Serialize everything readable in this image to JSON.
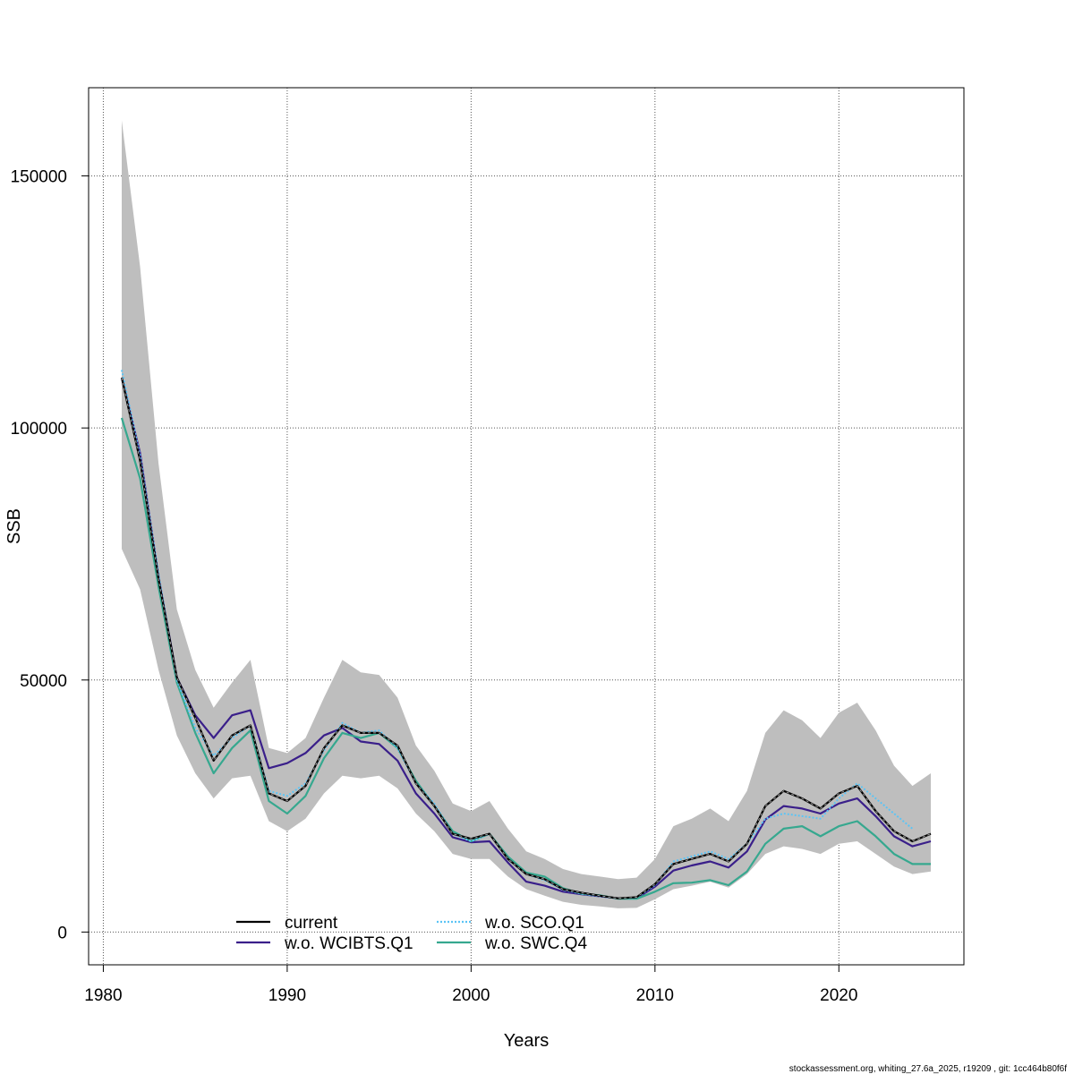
{
  "chart_data": {
    "type": "line",
    "xlabel": "Years",
    "ylabel": "SSB",
    "xlim": [
      1979.2,
      2026.8
    ],
    "ylim": [
      -6500,
      167500
    ],
    "x_ticks": [
      1980,
      1990,
      2000,
      2010,
      2020
    ],
    "y_ticks": [
      0,
      50000,
      100000,
      150000
    ],
    "grid": true,
    "legend_position": "bottom-left",
    "x": [
      1981,
      1982,
      1983,
      1984,
      1985,
      1986,
      1987,
      1988,
      1989,
      1990,
      1991,
      1992,
      1993,
      1994,
      1995,
      1996,
      1997,
      1998,
      1999,
      2000,
      2001,
      2002,
      2003,
      2004,
      2005,
      2006,
      2007,
      2008,
      2009,
      2010,
      2011,
      2012,
      2013,
      2014,
      2015,
      2016,
      2017,
      2018,
      2019,
      2020,
      2021,
      2022,
      2023,
      2024,
      2025
    ],
    "confidence_band": {
      "upper": [
        161000,
        132000,
        93000,
        64000,
        52000,
        44500,
        49500,
        54000,
        36500,
        35500,
        38500,
        46500,
        54000,
        51500,
        51000,
        46500,
        37000,
        32000,
        25500,
        24000,
        26000,
        20500,
        16000,
        14500,
        12500,
        11500,
        11000,
        10500,
        10800,
        14500,
        21000,
        22500,
        24500,
        22000,
        28000,
        39500,
        44000,
        42000,
        38500,
        43500,
        45500,
        40000,
        33000,
        29000,
        31500
      ],
      "lower": [
        76000,
        68000,
        52000,
        39000,
        31500,
        26500,
        30500,
        31000,
        22000,
        20000,
        22500,
        27500,
        31000,
        30500,
        31000,
        28500,
        23500,
        20000,
        15500,
        14500,
        14500,
        11000,
        8500,
        7200,
        6000,
        5400,
        5100,
        4700,
        4800,
        6500,
        8500,
        9200,
        10000,
        8800,
        11500,
        15500,
        17000,
        16500,
        15500,
        17500,
        18000,
        15500,
        13000,
        11500,
        12000
      ]
    },
    "series": [
      {
        "name": "current",
        "color": "#000000",
        "dash": "solid",
        "values": [
          110000,
          93500,
          70000,
          50500,
          42500,
          34000,
          39000,
          41000,
          27500,
          26000,
          29000,
          36500,
          41000,
          39500,
          39500,
          37000,
          29500,
          25000,
          19500,
          18500,
          19500,
          14500,
          11500,
          10500,
          8500,
          7800,
          7200,
          6700,
          6900,
          9500,
          13500,
          14500,
          15500,
          14000,
          17500,
          25000,
          28000,
          26500,
          24500,
          27500,
          29000,
          24000,
          20000,
          18000,
          19500
        ]
      },
      {
        "name": "w.o. WCIBTS.Q1",
        "color": "#3a1f8a",
        "dash": "solid",
        "values": [
          110000,
          95000,
          70500,
          50500,
          43000,
          38500,
          43000,
          44000,
          32500,
          33500,
          35500,
          39000,
          40500,
          37800,
          37300,
          34000,
          27500,
          23500,
          18800,
          17800,
          18000,
          13800,
          10000,
          9200,
          8000,
          7500,
          7100,
          6700,
          6700,
          9000,
          12200,
          13200,
          14000,
          12800,
          16000,
          22300,
          25000,
          24500,
          23500,
          25500,
          26500,
          23000,
          19000,
          17000,
          18000
        ]
      },
      {
        "name": "w.o. SCO.Q1",
        "color": "#5bc4f5",
        "dash": "dotted",
        "values": [
          111500,
          94500,
          71000,
          50000,
          40500,
          35000,
          38500,
          41000,
          28000,
          27000,
          29500,
          36000,
          41500,
          39500,
          40000,
          36500,
          29500,
          25500,
          19500,
          18000,
          19500,
          14500,
          11500,
          10300,
          8400,
          7600,
          7100,
          6700,
          6800,
          9300,
          14000,
          15000,
          16000,
          14500,
          17500,
          22500,
          23500,
          23000,
          22500,
          26500,
          29500,
          26500,
          23500,
          20500,
          null
        ]
      },
      {
        "name": "w.o. SWC.Q4",
        "color": "#36a88f",
        "dash": "solid",
        "values": [
          102000,
          90000,
          68500,
          49500,
          39500,
          31500,
          36500,
          40000,
          26000,
          23500,
          27000,
          34500,
          39500,
          38500,
          39500,
          36500,
          30000,
          25000,
          20000,
          18000,
          19500,
          15000,
          11800,
          11000,
          8700,
          7600,
          7300,
          6600,
          6600,
          8000,
          9700,
          9800,
          10300,
          9300,
          12000,
          17500,
          20500,
          21000,
          19000,
          21000,
          22000,
          19000,
          15500,
          13500,
          13500
        ]
      }
    ],
    "legend": [
      {
        "label": "current",
        "color": "#000000",
        "dash": "solid"
      },
      {
        "label": "w.o. WCIBTS.Q1",
        "color": "#3a1f8a",
        "dash": "solid"
      },
      {
        "label": "w.o. SCO.Q1",
        "color": "#5bc4f5",
        "dash": "dotted"
      },
      {
        "label": "w.o. SWC.Q4",
        "color": "#36a88f",
        "dash": "solid"
      }
    ]
  },
  "footer": "stockassessment.org, whiting_27.6a_2025, r19209 , git: 1cc464b80f6f"
}
